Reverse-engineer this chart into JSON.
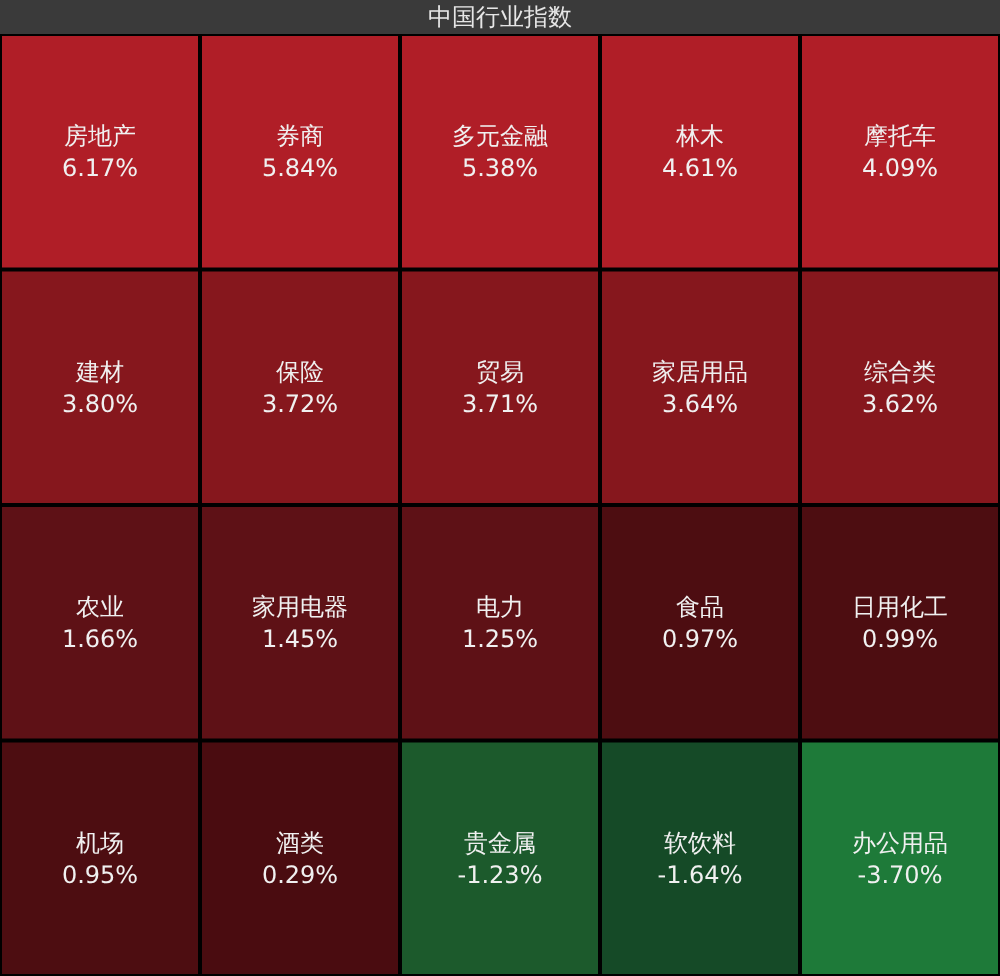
{
  "chart_data": {
    "type": "other",
    "title": "中国行业指数",
    "categories": [
      "房地产",
      "券商",
      "多元金融",
      "林木",
      "摩托车",
      "建材",
      "保险",
      "贸易",
      "家居用品",
      "综合类",
      "农业",
      "家用电器",
      "电力",
      "食品",
      "日用化工",
      "机场",
      "酒类",
      "贵金属",
      "软饮料",
      "办公用品"
    ],
    "values": [
      6.17,
      5.84,
      5.38,
      4.61,
      4.09,
      3.8,
      3.72,
      3.71,
      3.64,
      3.62,
      1.66,
      1.45,
      1.25,
      0.97,
      0.99,
      0.95,
      0.29,
      -1.23,
      -1.64,
      -3.7
    ],
    "value_labels": [
      "6.17%",
      "5.84%",
      "5.38%",
      "4.61%",
      "4.09%",
      "3.80%",
      "3.72%",
      "3.71%",
      "3.64%",
      "3.62%",
      "1.66%",
      "1.45%",
      "1.25%",
      "0.97%",
      "0.99%",
      "0.95%",
      "0.29%",
      "-1.23%",
      "-1.64%",
      "-3.70%"
    ]
  }
}
